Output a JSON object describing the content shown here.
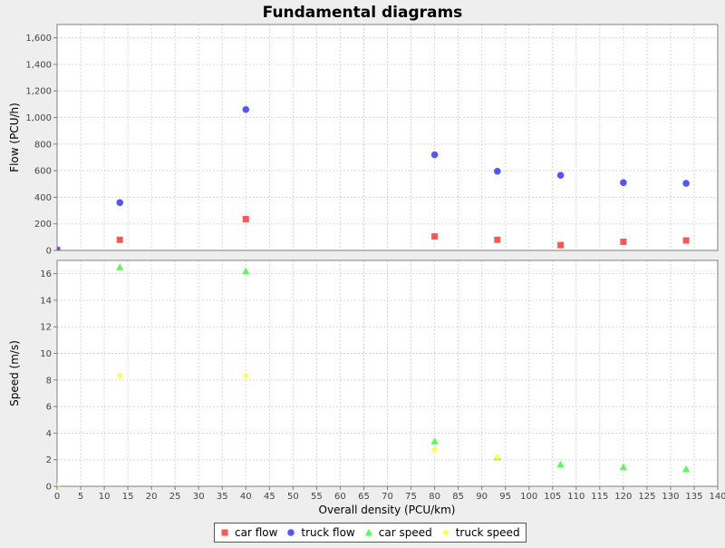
{
  "chart_data": {
    "type": "scatter",
    "title": "Fundamental diagrams",
    "xlabel": "Overall density (PCU/km)",
    "xlim": [
      0,
      140
    ],
    "xticks": [
      "0",
      "5",
      "10",
      "15",
      "20",
      "25",
      "30",
      "35",
      "40",
      "45",
      "50",
      "55",
      "60",
      "65",
      "70",
      "75",
      "80",
      "85",
      "90",
      "95",
      "100",
      "105",
      "110",
      "115",
      "120",
      "125",
      "130",
      "135",
      "140"
    ],
    "grid": true,
    "legend_position": "bottom",
    "panels": [
      {
        "ylabel": "Flow (PCU/h)",
        "ylim": [
          0,
          1700
        ],
        "yticks": [
          "0",
          "200",
          "400",
          "600",
          "800",
          "1,000",
          "1,200",
          "1,400",
          "1,600"
        ],
        "series": [
          {
            "name": "car flow",
            "color": "#ff5555",
            "marker": "square",
            "x": [
              0,
              13.3,
              40,
              80,
              93.3,
              106.7,
              120,
              133.3
            ],
            "y": [
              5,
              80,
              235,
              105,
              80,
              40,
              65,
              75
            ]
          },
          {
            "name": "truck flow",
            "color": "#5555ff",
            "marker": "circle",
            "x": [
              0,
              13.3,
              40,
              80,
              93.3,
              106.7,
              120,
              133.3
            ],
            "y": [
              0,
              360,
              1060,
              720,
              595,
              565,
              510,
              505
            ]
          }
        ]
      },
      {
        "ylabel": "Speed (m/s)",
        "ylim": [
          0,
          17
        ],
        "yticks": [
          "0",
          "2",
          "4",
          "6",
          "8",
          "10",
          "12",
          "14",
          "16"
        ],
        "series": [
          {
            "name": "car speed",
            "color": "#55ff55",
            "marker": "triangle",
            "x": [
              0,
              13.3,
              40,
              80,
              93.3,
              106.7,
              120,
              133.3
            ],
            "y": [
              0,
              16.5,
              16.2,
              3.4,
              2.2,
              1.65,
              1.45,
              1.3
            ]
          },
          {
            "name": "truck speed",
            "color": "#ffff55",
            "marker": "diamond",
            "x": [
              0,
              13.3,
              40,
              80,
              93.3
            ],
            "y": [
              0,
              8.3,
              8.3,
              2.75,
              2.2
            ]
          }
        ]
      }
    ]
  },
  "legend": [
    {
      "label": "car flow",
      "color": "#ff5555",
      "marker": "square"
    },
    {
      "label": "truck flow",
      "color": "#5555ff",
      "marker": "circle"
    },
    {
      "label": "car speed",
      "color": "#55ff55",
      "marker": "triangle"
    },
    {
      "label": "truck speed",
      "color": "#ffff55",
      "marker": "diamond"
    }
  ]
}
